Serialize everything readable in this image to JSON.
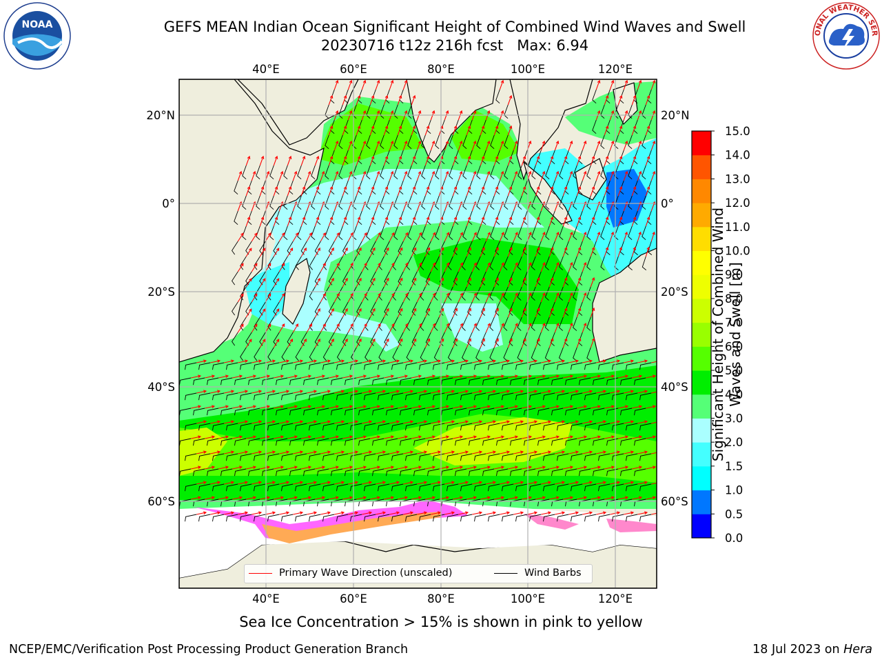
{
  "title": {
    "line1": "GEFS MEAN Indian Ocean Significant Height of Combined Wind Waves and Swell",
    "line2": "20230716 t12z 216h fcst   Max: 6.94"
  },
  "logos": {
    "left": {
      "name": "noaa-logo",
      "text": "NOAA"
    },
    "right": {
      "name": "nws-logo",
      "text": "NATIONAL WEATHER SERVICE"
    }
  },
  "map": {
    "lon_ticks": [
      "40°E",
      "60°E",
      "80°E",
      "100°E",
      "120°E"
    ],
    "lat_ticks": [
      "20°N",
      "0°",
      "20°S",
      "40°S",
      "60°S"
    ],
    "land_color": "#efeedd",
    "ice_colors": [
      "#ff66ff",
      "#ffaa55",
      "#ffff66"
    ]
  },
  "colorbar": {
    "label": "Significant Height of Combined Wind Waves and Swell [m]",
    "ticks": [
      "0.0",
      "0.5",
      "1.0",
      "1.5",
      "2.0",
      "3.0",
      "4.0",
      "5.0",
      "6.0",
      "7.0",
      "8.0",
      "9.0",
      "10.0",
      "11.0",
      "12.0",
      "13.0",
      "14.0",
      "15.0"
    ],
    "colors": [
      "#0000ff",
      "#0077ff",
      "#00ffff",
      "#44ffff",
      "#aaffff",
      "#55ff77",
      "#00ee00",
      "#55ff00",
      "#99ff00",
      "#ccff00",
      "#eeff00",
      "#ffff00",
      "#ffdd00",
      "#ffaa00",
      "#ff8800",
      "#ff5500",
      "#ff0000"
    ]
  },
  "legend": {
    "items": [
      {
        "label": "Primary Wave Direction (unscaled)",
        "color": "#ff0000"
      },
      {
        "label": "Wind Barbs",
        "color": "#000000"
      }
    ]
  },
  "ice_note": "Sea Ice Concentration > 15% is shown in pink to yellow",
  "footer": {
    "left": "NCEP/EMC/Verification Post Processing Product Generation Branch",
    "right_date": "18 Jul 2023 on ",
    "right_host": "Hera"
  }
}
